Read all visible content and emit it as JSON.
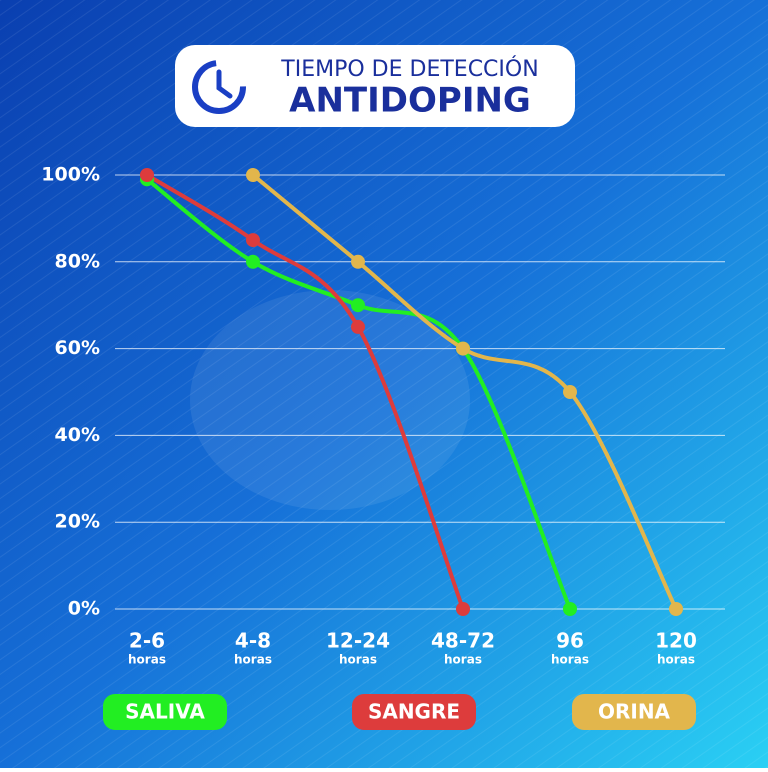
{
  "chart_data": {
    "type": "line",
    "title": "TIEMPO DE DETECCIÓN",
    "subtitle": "ANTIDOPING",
    "categories": [
      "2-6",
      "4-8",
      "12-24",
      "48-72",
      "96",
      "120"
    ],
    "category_unit": "horas",
    "series": [
      {
        "name": "SALIVA",
        "color": "#22ee22",
        "values": [
          99,
          80,
          70,
          60,
          0,
          null
        ]
      },
      {
        "name": "SANGRE",
        "color": "#dd3c3c",
        "values": [
          100,
          85,
          65,
          0,
          null,
          null
        ]
      },
      {
        "name": "ORINA",
        "color": "#e2b64c",
        "values": [
          null,
          100,
          80,
          60,
          50,
          0
        ]
      }
    ],
    "ylim": [
      0,
      100
    ],
    "yticks": [
      {
        "value": 0,
        "label": "0%"
      },
      {
        "value": 20,
        "label": "20%"
      },
      {
        "value": 40,
        "label": "40%"
      },
      {
        "value": 60,
        "label": "60%"
      },
      {
        "value": 80,
        "label": "80%"
      },
      {
        "value": 100,
        "label": "100%"
      }
    ],
    "grid": true
  }
}
